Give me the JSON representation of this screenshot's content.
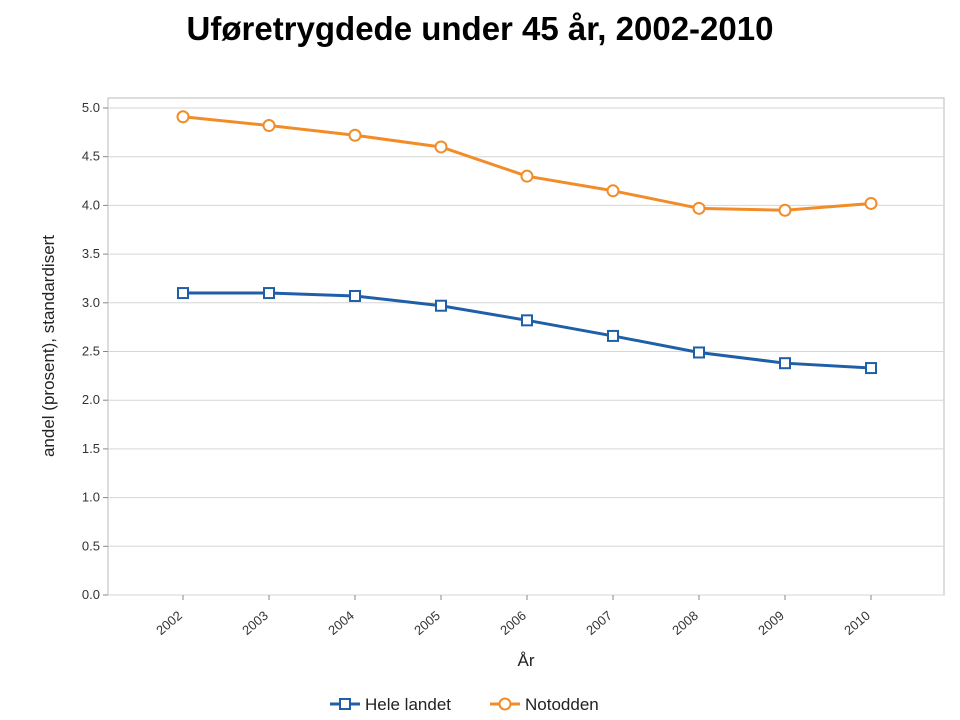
{
  "chart_data": {
    "type": "line",
    "title": "Uføretrygdede under 45 år, 2002-2010",
    "xlabel": "År",
    "ylabel": "andel (prosent), standardisert",
    "categories": [
      "2002",
      "2003",
      "2004",
      "2005",
      "2006",
      "2007",
      "2008",
      "2009",
      "2010"
    ],
    "ylim": [
      0,
      5.0
    ],
    "yticks": [
      "0.0",
      "0.5",
      "1.0",
      "1.5",
      "2.0",
      "2.5",
      "3.0",
      "3.5",
      "4.0",
      "4.5",
      "5.0"
    ],
    "grid": true,
    "legend_position": "bottom",
    "series": [
      {
        "name": "Hele landet",
        "color": "#1f5fa8",
        "marker": "square",
        "values": [
          3.1,
          3.1,
          3.07,
          2.97,
          2.82,
          2.66,
          2.49,
          2.38,
          2.33
        ]
      },
      {
        "name": "Notodden",
        "color": "#f28c28",
        "marker": "circle",
        "values": [
          4.91,
          4.82,
          4.72,
          4.6,
          4.3,
          4.15,
          3.97,
          3.95,
          4.02
        ]
      }
    ]
  }
}
